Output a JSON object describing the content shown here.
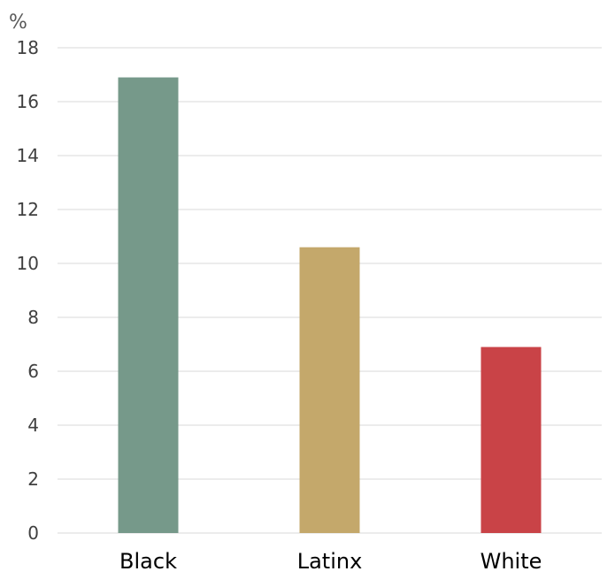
{
  "chart_data": {
    "type": "bar",
    "title": "",
    "xlabel": "",
    "ylabel": "%",
    "categories": [
      "Black",
      "Latinx",
      "White"
    ],
    "values": [
      16.9,
      10.6,
      6.9
    ],
    "colors": [
      "#76998a",
      "#c4a86b",
      "#c94347"
    ],
    "ylim": [
      0,
      18
    ],
    "yticks": [
      "0",
      "2",
      "4",
      "6",
      "8",
      "10",
      "12",
      "14",
      "16",
      "18"
    ],
    "grid": true
  }
}
